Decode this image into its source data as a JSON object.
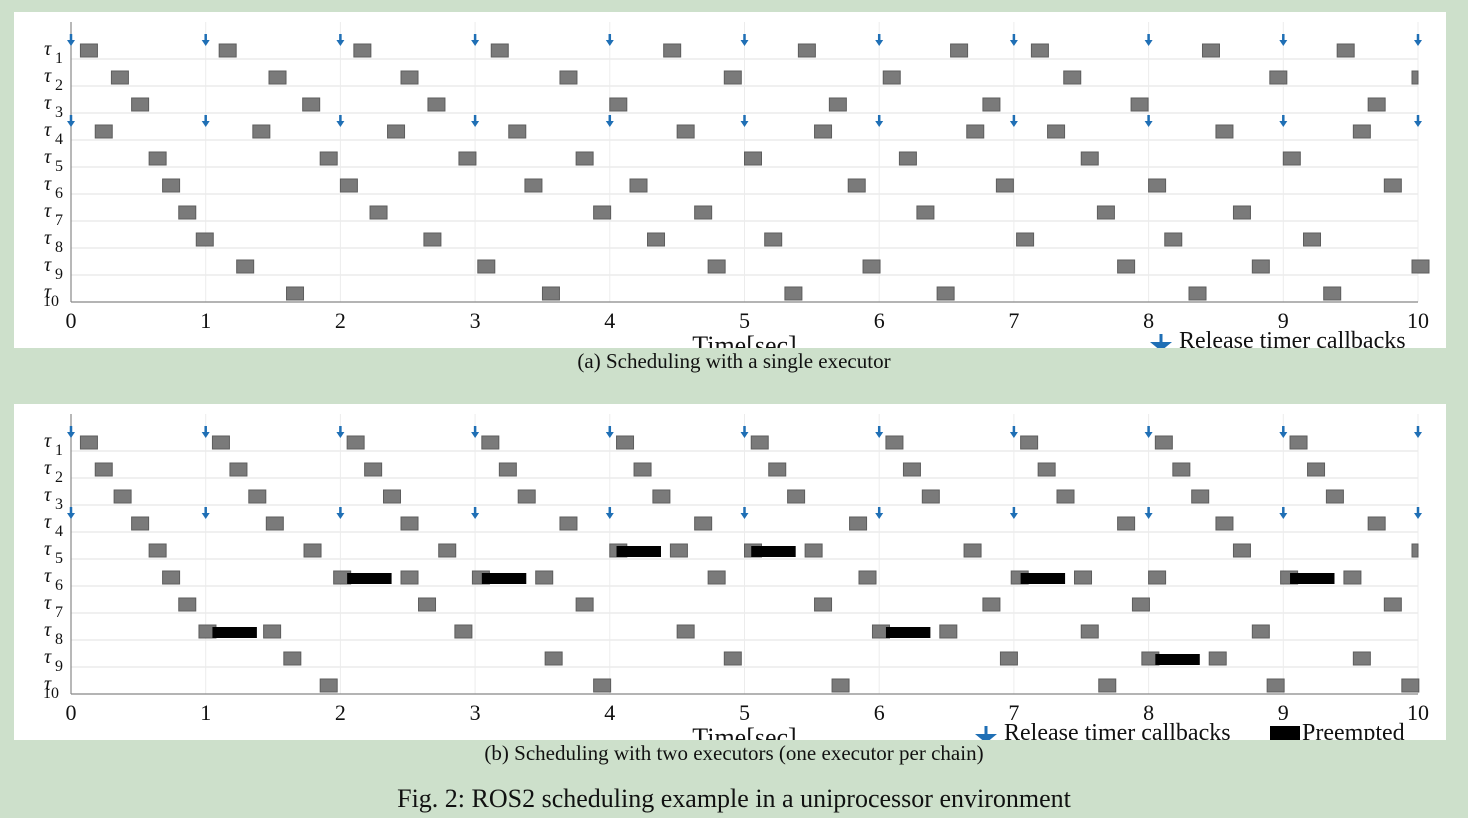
{
  "figure_caption": "Fig. 2: ROS2 scheduling example in a uniprocessor environment",
  "colors": {
    "task": "#7a7a7a",
    "preempted": "#000000",
    "release": "#1f6fb5",
    "background": "#cde0cb"
  },
  "chart_data": [
    {
      "type": "gantt",
      "caption": "(a) Scheduling with a single executor",
      "xlabel": "Time[sec]",
      "xlim": [
        0,
        10
      ],
      "xticks": [
        "0",
        "1",
        "2",
        "3",
        "4",
        "5",
        "6",
        "7",
        "8",
        "9",
        "10"
      ],
      "tasks": [
        "1",
        "2",
        "3",
        "4",
        "5",
        "6",
        "7",
        "8",
        "9",
        "10"
      ],
      "legend": [
        {
          "label": "Release timer callbacks",
          "icon": "down-arrow-icon"
        }
      ],
      "legend_placement": "bottom-right",
      "release_rows": [
        1,
        4
      ],
      "release_times": [
        0,
        1,
        2,
        3,
        4,
        5,
        6,
        7,
        8,
        9,
        10
      ],
      "executions": [
        [
          0.07,
          1.1,
          2.1,
          3.12,
          4.4,
          5.4,
          6.53,
          7.13,
          8.4,
          9.4
        ],
        [
          0.3,
          1.47,
          2.45,
          3.63,
          4.85,
          6.03,
          7.37,
          8.9,
          10.0
        ],
        [
          0.45,
          1.72,
          2.65,
          4.0,
          5.63,
          6.77,
          7.87,
          9.63
        ],
        [
          0.18,
          1.35,
          2.35,
          3.25,
          4.5,
          5.52,
          6.65,
          7.25,
          8.5,
          9.52
        ],
        [
          0.58,
          1.85,
          2.88,
          3.75,
          5.0,
          6.15,
          7.5,
          9.0
        ],
        [
          0.68,
          2.0,
          3.37,
          4.15,
          5.77,
          6.87,
          8.0,
          9.75
        ],
        [
          0.8,
          2.22,
          3.88,
          4.63,
          6.28,
          7.62,
          8.63
        ],
        [
          0.93,
          2.62,
          4.28,
          5.15,
          7.02,
          8.12,
          9.15
        ],
        [
          1.23,
          3.02,
          4.73,
          5.88,
          7.77,
          8.77,
          9.9
        ],
        [
          1.6,
          3.5,
          5.3,
          6.43,
          8.3,
          9.3
        ]
      ],
      "preempted": [
        [],
        [],
        [],
        [],
        [],
        [],
        [],
        [],
        [],
        []
      ]
    },
    {
      "type": "gantt",
      "caption": "(b) Scheduling with two executors (one executor per chain)",
      "xlabel": "Time[sec]",
      "xlim": [
        0,
        10
      ],
      "xticks": [
        "0",
        "1",
        "2",
        "3",
        "4",
        "5",
        "6",
        "7",
        "8",
        "9",
        "10"
      ],
      "tasks": [
        "1",
        "2",
        "3",
        "4",
        "5",
        "6",
        "7",
        "8",
        "9",
        "10"
      ],
      "legend": [
        {
          "label": "Release timer callbacks",
          "icon": "down-arrow-icon"
        },
        {
          "label": "Preempted",
          "icon": "black-box-icon"
        }
      ],
      "legend_placement": "bottom-right",
      "release_rows": [
        1,
        4
      ],
      "release_times": [
        0,
        1,
        2,
        3,
        4,
        5,
        6,
        7,
        8,
        9,
        10
      ],
      "executions": [
        [
          0.07,
          1.05,
          2.05,
          3.05,
          4.05,
          5.05,
          6.05,
          7.05,
          8.05,
          9.05
        ],
        [
          0.18,
          1.18,
          2.18,
          3.18,
          4.18,
          5.18,
          6.18,
          7.18,
          8.18,
          9.18
        ],
        [
          0.32,
          1.32,
          2.32,
          3.32,
          4.32,
          5.32,
          6.32,
          7.32,
          8.32,
          9.32
        ],
        [
          0.45,
          1.45,
          2.45,
          3.63,
          4.63,
          5.78,
          7.77,
          8.5,
          9.63
        ],
        [
          0.58,
          1.73,
          2.73,
          4.0,
          4.45,
          5.0,
          5.45,
          6.63,
          8.63,
          10.0
        ],
        [
          0.68,
          1.95,
          2.45,
          2.98,
          3.45,
          4.73,
          5.85,
          6.98,
          7.45,
          8.0,
          8.98,
          9.45
        ],
        [
          0.8,
          2.58,
          3.75,
          5.52,
          6.77,
          7.88,
          9.75
        ],
        [
          0.95,
          1.43,
          2.85,
          4.5,
          5.95,
          6.45,
          7.5,
          8.77
        ],
        [
          1.58,
          3.52,
          4.85,
          6.9,
          7.95,
          8.45,
          9.52
        ],
        [
          1.85,
          3.88,
          5.65,
          7.63,
          8.88,
          9.88
        ]
      ],
      "preempted": [
        [],
        [],
        [],
        [],
        [
          [
            4.05,
            4.38
          ],
          [
            5.05,
            5.38
          ]
        ],
        [
          [
            2.05,
            2.38
          ],
          [
            3.05,
            3.38
          ],
          [
            7.05,
            7.38
          ],
          [
            9.05,
            9.38
          ]
        ],
        [],
        [
          [
            1.05,
            1.38
          ],
          [
            6.05,
            6.38
          ]
        ],
        [
          [
            8.05,
            8.38
          ]
        ],
        []
      ]
    }
  ]
}
